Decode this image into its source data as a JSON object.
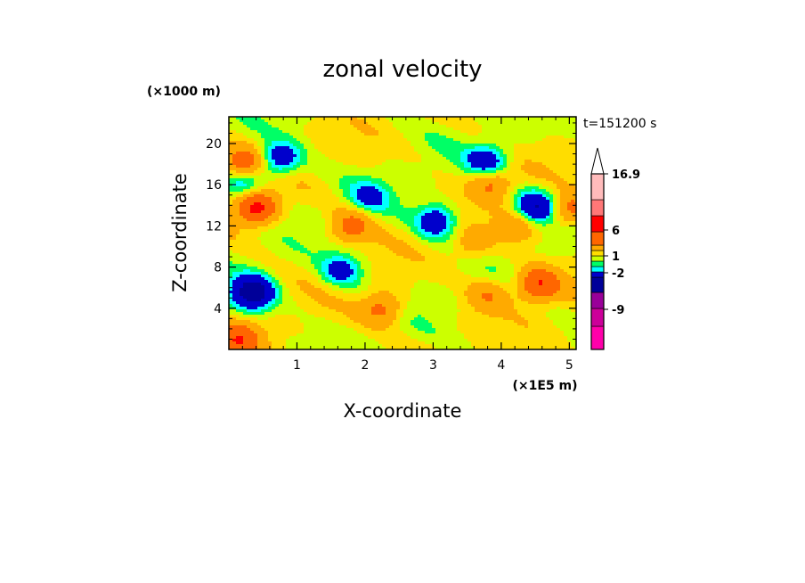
{
  "chart_data": {
    "type": "heatmap",
    "title": "zonal velocity",
    "xlabel": "X-coordinate",
    "ylabel": "Z-coordinate",
    "x_scale_label": "(×1E5 m)",
    "y_scale_label": "(×1000 m)",
    "time_label": "t=151200 s",
    "xlim": [
      0,
      5.1
    ],
    "ylim": [
      0,
      22.6
    ],
    "x_ticks": [
      "1",
      "2",
      "3",
      "4",
      "5"
    ],
    "y_ticks": [
      "4",
      "8",
      "12",
      "16",
      "20"
    ],
    "grid": false,
    "colorbar": {
      "placement": "right",
      "extend": "max",
      "tick_labels": [
        "16.9",
        "6",
        "1",
        "-2",
        "-9"
      ],
      "colors": [
        "#ff00aa",
        "#cc0099",
        "#990099",
        "#000099",
        "#0000cc",
        "#00ffff",
        "#00ff66",
        "#ccff00",
        "#ffdd00",
        "#ffaa00",
        "#ff6600",
        "#ff0000",
        "#ff7777",
        "#ffbbbb"
      ]
    },
    "field_features": [
      {
        "x": 0.35,
        "z": 5.5,
        "value": -8
      },
      {
        "x": 0.4,
        "z": 13.8,
        "value": 7
      },
      {
        "x": 0.2,
        "z": 18.0,
        "value": 5
      },
      {
        "x": 0.75,
        "z": 18.5,
        "value": -5
      },
      {
        "x": 0.2,
        "z": 16.2,
        "value": -4
      },
      {
        "x": 2.25,
        "z": 4.0,
        "value": 4
      },
      {
        "x": 1.8,
        "z": 12.0,
        "value": 4
      },
      {
        "x": 3.05,
        "z": 12.5,
        "value": -5
      },
      {
        "x": 3.8,
        "z": 18.2,
        "value": -5
      },
      {
        "x": 4.5,
        "z": 13.8,
        "value": -6
      },
      {
        "x": 4.55,
        "z": 6.3,
        "value": 6
      },
      {
        "x": 3.8,
        "z": 5.3,
        "value": 3
      },
      {
        "x": 3.85,
        "z": 16.3,
        "value": 4
      },
      {
        "x": 4.25,
        "z": 12.0,
        "value": 3
      },
      {
        "x": 0.15,
        "z": 1.0,
        "value": 5
      },
      {
        "x": 1.65,
        "z": 7.7,
        "value": -4
      },
      {
        "x": 2.05,
        "z": 14.8,
        "value": -3
      },
      {
        "x": 5.0,
        "z": 13.5,
        "value": 4
      },
      {
        "x": 3.55,
        "z": 10.0,
        "value": 2
      }
    ]
  }
}
